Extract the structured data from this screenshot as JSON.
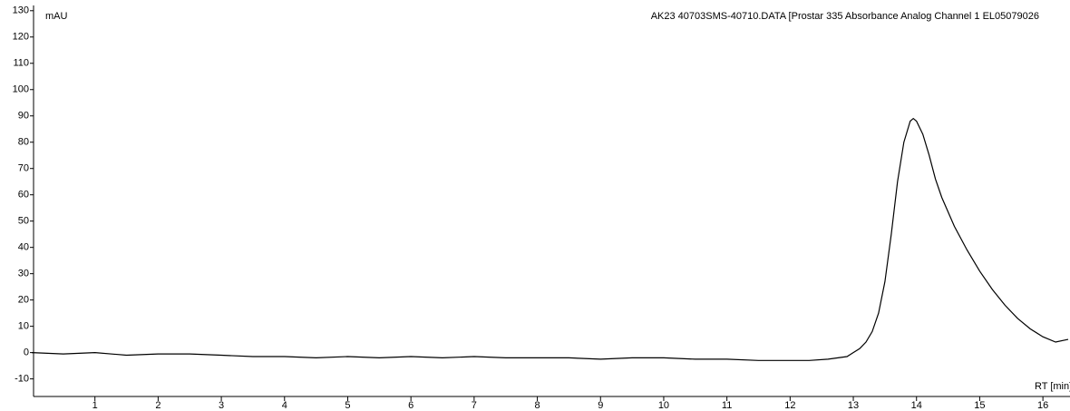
{
  "chart_data": {
    "type": "line",
    "y_label": "mAU",
    "title": "AK23 40703SMS-40710.DATA [Prostar 335 Absorbance Analog Channel 1 EL05079026",
    "x_label": "RT [min]",
    "x": [
      0,
      0.5,
      1,
      1.5,
      2,
      2.5,
      3,
      3.5,
      4,
      4.5,
      5,
      5.5,
      6,
      6.5,
      7,
      7.5,
      8,
      8.5,
      9,
      9.5,
      10,
      10.5,
      11,
      11.5,
      12,
      12.3,
      12.6,
      12.9,
      13.0,
      13.1,
      13.2,
      13.3,
      13.4,
      13.5,
      13.6,
      13.7,
      13.8,
      13.9,
      13.95,
      14.0,
      14.1,
      14.2,
      14.3,
      14.4,
      14.6,
      14.8,
      15.0,
      15.2,
      15.4,
      15.6,
      15.8,
      16.0,
      16.2,
      16.4
    ],
    "series": [
      {
        "color": "#000000",
        "values": [
          0,
          -0.5,
          0,
          -1,
          -0.5,
          -0.5,
          -1,
          -1.5,
          -1.5,
          -2,
          -1.5,
          -2,
          -1.5,
          -2,
          -1.5,
          -2,
          -2,
          -2,
          -2.5,
          -2,
          -2,
          -2.5,
          -2.5,
          -3,
          -3,
          -3,
          -2.5,
          -1.5,
          0,
          1.5,
          4,
          8,
          15,
          27,
          45,
          65,
          80,
          88,
          89,
          88,
          83,
          75,
          66,
          59,
          48,
          39,
          31,
          24,
          18,
          13,
          9,
          6,
          4,
          5
        ]
      }
    ],
    "xlim": [
      0,
      16.4
    ],
    "ylim": [
      -16,
      132
    ],
    "xticks": [
      1,
      2,
      3,
      4,
      5,
      6,
      7,
      8,
      9,
      10,
      11,
      12,
      13,
      14,
      15,
      16
    ],
    "yticks": [
      -10,
      0,
      10,
      20,
      30,
      40,
      50,
      60,
      70,
      80,
      90,
      100,
      110,
      120,
      130
    ]
  }
}
